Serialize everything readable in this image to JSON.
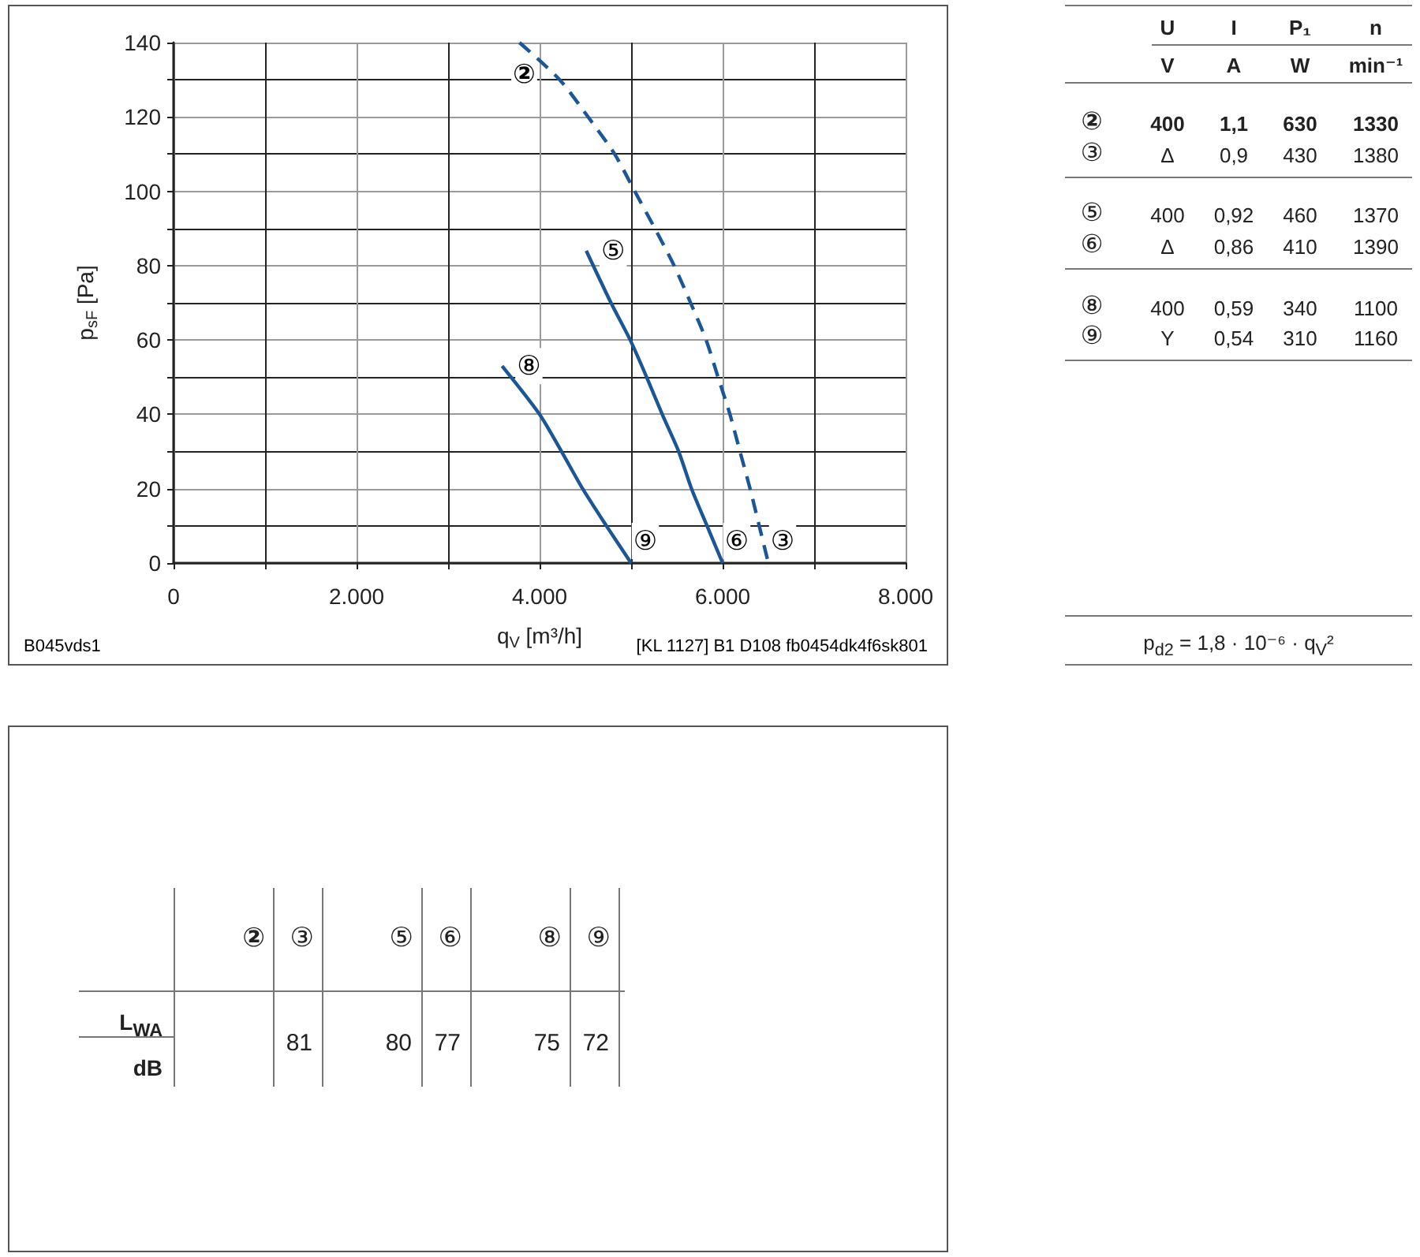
{
  "chart_data": [
    {
      "type": "line",
      "xlabel": "q$_{V}$ [m³/h]",
      "ylabel": "p$_{sF}$ [Pa]",
      "series": [
        {
          "color": "#1b5796",
          "line_style": "dashed",
          "x": [
            3780,
            4220,
            4530,
            4820,
            5040,
            5260,
            5470,
            5650,
            5820,
            5950,
            6080,
            6190,
            6300,
            6400,
            6500
          ],
          "values": [
            140,
            130,
            120,
            110,
            100,
            90,
            80,
            70,
            60,
            50,
            40,
            30,
            20,
            10,
            0
          ]
        },
        {
          "color": "#1b5796",
          "x": [
            4510,
            4780,
            4990,
            5170,
            5340,
            5520,
            5660,
            5830,
            6000
          ],
          "values": [
            84,
            70,
            60,
            50,
            40,
            30,
            20,
            10,
            0
          ]
        },
        {
          "color": "#1b5796",
          "x": [
            3590,
            4000,
            4240,
            4470,
            4730,
            5000
          ],
          "values": [
            53,
            40,
            30,
            20,
            10,
            0
          ]
        }
      ],
      "xlim": [
        0,
        8000
      ],
      "ylim": [
        0,
        140
      ],
      "xticks": [
        0,
        {
          "value": 1000,
          "label": null
        },
        {
          "value": 2000,
          "label": "2.000"
        },
        {
          "value": 3000,
          "label": null
        },
        {
          "value": 4000,
          "label": "4.000"
        },
        {
          "value": 5000,
          "label": null
        },
        {
          "value": 6000,
          "label": "6.000"
        },
        {
          "value": 7000,
          "label": null
        },
        {
          "value": 8000,
          "label": "8.000"
        }
      ],
      "yticks": [
        0,
        {
          "value": 10,
          "label": null
        },
        20,
        {
          "value": 30,
          "label": null
        },
        40,
        {
          "value": 50,
          "label": null
        },
        60,
        {
          "value": 70,
          "label": null
        },
        80,
        {
          "value": 90,
          "label": null
        },
        100,
        {
          "value": 110,
          "label": null
        },
        120,
        {
          "value": 130,
          "label": null
        },
        140
      ],
      "grid": true,
      "marker": "none",
      "line_style": "solid",
      "annotations": [
        {
          "text": "②",
          "x": 3780,
          "y": 140
        },
        {
          "text": "⑤",
          "x": 4510,
          "y": 84
        },
        {
          "text": "⑧",
          "x": 3590,
          "y": 53
        },
        {
          "text": "⑨",
          "x": 5000,
          "y": 0
        },
        {
          "text": "⑥",
          "x": 6000,
          "y": 0
        },
        {
          "text": "③",
          "x": 6500,
          "y": 0
        },
        "B045vds1",
        "[KL 1127] B1 D108 fb0454dk4f6sk801"
      ]
    },
    {
      "type": "other",
      "annotations": [
        "U",
        "I",
        "P₁",
        "n",
        "V",
        "A",
        "W",
        "min⁻¹",
        "②",
        "400",
        "1,1",
        "630",
        "1330",
        "③",
        "Δ",
        "0,9",
        "430",
        "1380",
        "⑤",
        "400",
        "0,92",
        "460",
        "1370",
        "⑥",
        "Δ",
        "0,86",
        "410",
        "1390",
        "⑧",
        "400",
        "0,59",
        "340",
        "1100",
        "⑨",
        "Y",
        "0,54",
        "310",
        "1160",
        "p$_{d2}$ = 1,8 · 10⁻⁶ · q$_{V}$²"
      ]
    },
    {
      "type": "other",
      "categories": [
        "②",
        "③",
        "⑤",
        "⑥",
        "⑧",
        "⑨"
      ],
      "values": [
        null,
        81,
        80,
        77,
        75,
        72
      ],
      "data_labels": true,
      "annotations": [
        "L$_{WA}$",
        "dB"
      ]
    }
  ]
}
